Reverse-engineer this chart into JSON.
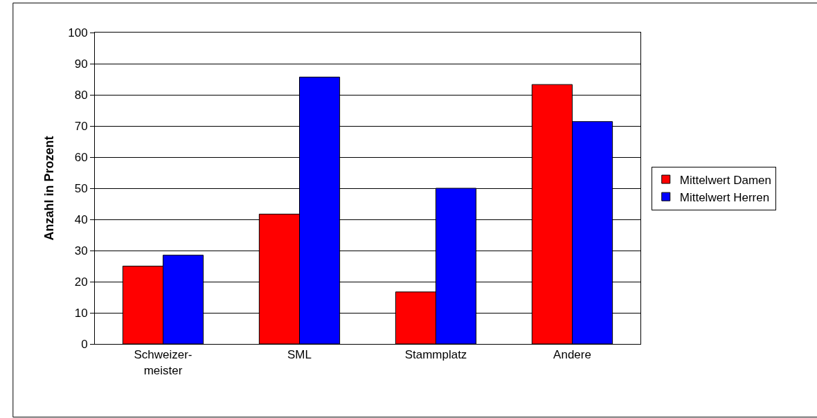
{
  "chart_data": {
    "type": "bar",
    "ylabel": "Anzahl in Prozent",
    "categories": [
      "Schweizer-\nmeister",
      "SML",
      "Stammplatz",
      "Andere"
    ],
    "series": [
      {
        "name": "Mittelwert Damen",
        "color": "#ff0000",
        "values": [
          25,
          41.7,
          16.7,
          83.3
        ]
      },
      {
        "name": "Mittelwert Herren",
        "color": "#0000ff",
        "values": [
          28.5,
          85.7,
          50,
          71.4
        ]
      }
    ],
    "ylim": [
      0,
      100
    ],
    "yticks": [
      0,
      10,
      20,
      30,
      40,
      50,
      60,
      70,
      80,
      90,
      100
    ],
    "grid": "y",
    "legend": "right"
  }
}
